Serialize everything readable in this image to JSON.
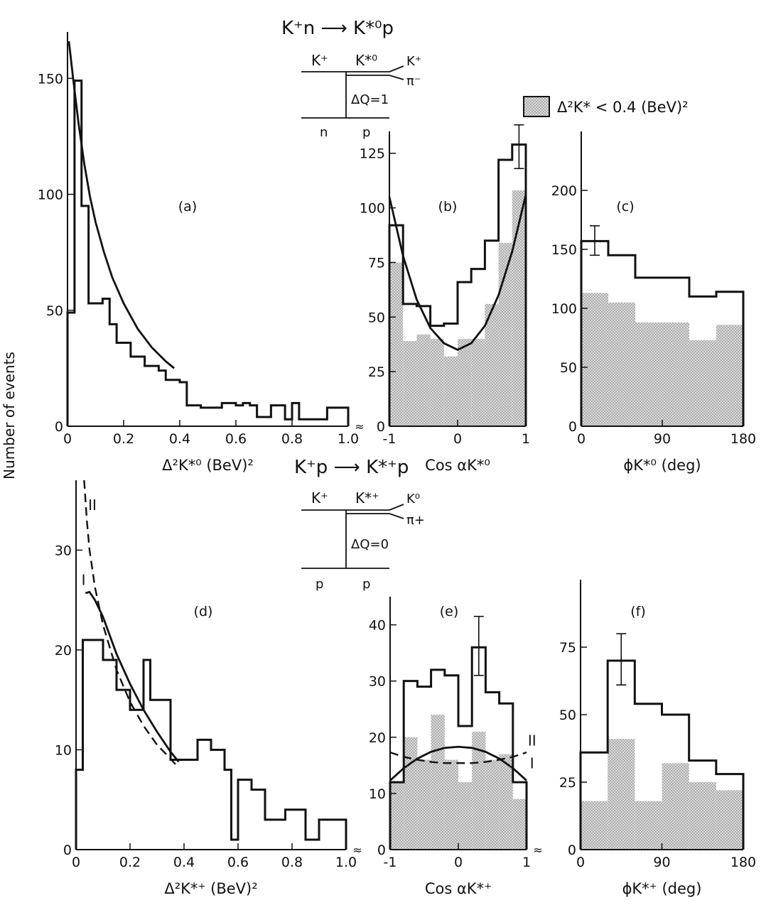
{
  "figure": {
    "ylabel": "Number of events",
    "legend": "Δ²K* < 0.4  (BeV)²"
  },
  "diagrams": [
    {
      "reaction": "K⁺n ⟶ K*⁰p",
      "top_left": "K⁺",
      "top_mid": "K*⁰",
      "out1": "K⁺",
      "out2": "π⁻",
      "exchange": "ΔQ=1",
      "bottom_left": "n",
      "bottom_right": "p"
    },
    {
      "reaction": "K⁺p ⟶ K*⁺p",
      "top_left": "K⁺",
      "top_mid": "K*⁺",
      "out1": "K⁰",
      "out2": "π+",
      "exchange": "ΔQ=0",
      "bottom_left": "p",
      "bottom_right": "p"
    }
  ],
  "chart_data": [
    {
      "id": "a",
      "panel_label": "(a)",
      "type": "bar",
      "xlabel": "Δ²K*⁰   (BeV)²",
      "xlim": [
        0,
        1.0
      ],
      "ylim": [
        0,
        170
      ],
      "xticks": [
        0,
        0.2,
        0.4,
        0.6,
        0.8,
        1.0
      ],
      "xtick_labels": [
        "0",
        "0.2",
        "0.4",
        "0.6",
        "0.8",
        "1.0"
      ],
      "yticks": [
        0,
        50,
        100,
        150
      ],
      "ytick_labels": [
        "0",
        "50",
        "100",
        "150"
      ],
      "axis_break": "≈",
      "bin_edges": [
        0,
        0.025,
        0.05,
        0.075,
        0.1,
        0.125,
        0.15,
        0.175,
        0.2,
        0.225,
        0.25,
        0.275,
        0.3,
        0.325,
        0.35,
        0.375,
        0.4,
        0.425,
        0.45,
        0.475,
        0.5,
        0.525,
        0.55,
        0.575,
        0.6,
        0.625,
        0.65,
        0.675,
        0.7,
        0.725,
        0.75,
        0.775,
        0.8,
        0.825,
        0.85,
        0.875,
        0.9,
        0.925,
        0.95,
        0.975,
        1.0
      ],
      "values": [
        49,
        149,
        95,
        53,
        53,
        55,
        44,
        36,
        36,
        30,
        30,
        26,
        26,
        24,
        20,
        20,
        19,
        9,
        9,
        8,
        8,
        8,
        10,
        10,
        9,
        10,
        9,
        4,
        4,
        9,
        9,
        3,
        10,
        3,
        3,
        3,
        3,
        8,
        8,
        8
      ],
      "curves": [
        {
          "name": "fit",
          "style": "solid",
          "x": [
            0.005,
            0.02,
            0.04,
            0.06,
            0.08,
            0.1,
            0.13,
            0.16,
            0.2,
            0.25,
            0.3,
            0.35,
            0.38
          ],
          "y": [
            166,
            150,
            130,
            113,
            99,
            88,
            75,
            64,
            53,
            42,
            34,
            28,
            25
          ]
        }
      ]
    },
    {
      "id": "b",
      "panel_label": "(b)",
      "type": "bar",
      "xlabel": "Cos αK*⁰",
      "xlim": [
        -1,
        1
      ],
      "ylim": [
        0,
        135
      ],
      "xticks": [
        -1,
        0,
        1
      ],
      "xtick_labels": [
        "-1",
        "0",
        "1"
      ],
      "yticks": [
        0,
        25,
        50,
        75,
        100,
        125
      ],
      "ytick_labels": [
        "0",
        "25",
        "50",
        "75",
        "100",
        "125"
      ],
      "bin_edges": [
        -1,
        -0.8,
        -0.6,
        -0.4,
        -0.2,
        0,
        0.2,
        0.4,
        0.6,
        0.8,
        1.0
      ],
      "values": [
        92,
        56,
        55,
        46,
        47,
        66,
        72,
        85,
        122,
        129
      ],
      "shaded": [
        75,
        39,
        42,
        40,
        32,
        40,
        40,
        56,
        84,
        108
      ],
      "error_bars": [
        {
          "x": 0.9,
          "y": 129,
          "low": 118,
          "high": 138
        }
      ],
      "curves": [
        {
          "name": "fit",
          "style": "solid",
          "x": [
            -1,
            -0.8,
            -0.6,
            -0.4,
            -0.2,
            0,
            0.2,
            0.4,
            0.6,
            0.8,
            1.0
          ],
          "y": [
            105,
            78,
            58,
            45,
            38,
            35,
            38,
            46,
            60,
            80,
            106
          ]
        }
      ]
    },
    {
      "id": "c",
      "panel_label": "(c)",
      "type": "bar",
      "xlabel": "ϕK*⁰  (deg)",
      "xlim": [
        0,
        180
      ],
      "ylim": [
        0,
        250
      ],
      "xticks": [
        0,
        90,
        180
      ],
      "xtick_labels": [
        "0",
        "90",
        "180"
      ],
      "yticks": [
        0,
        50,
        100,
        150,
        200
      ],
      "ytick_labels": [
        "0",
        "50",
        "100",
        "150",
        "200"
      ],
      "bin_edges": [
        0,
        30,
        60,
        120,
        150,
        180
      ],
      "values": [
        157,
        145,
        126,
        110,
        114
      ],
      "shaded": [
        113,
        105,
        88,
        73,
        86
      ],
      "error_bars": [
        {
          "x": 15,
          "y": 157,
          "low": 145,
          "high": 170
        }
      ]
    },
    {
      "id": "d",
      "panel_label": "(d)",
      "type": "bar",
      "xlabel": "Δ²K*⁺   (BeV)²",
      "xlim": [
        0,
        1.0
      ],
      "ylim": [
        0,
        37
      ],
      "xticks": [
        0,
        0.2,
        0.4,
        0.6,
        0.8,
        1.0
      ],
      "xtick_labels": [
        "0",
        "0.2",
        "0.4",
        "0.6",
        "0.8",
        "1.0"
      ],
      "yticks": [
        0,
        10,
        20,
        30
      ],
      "ytick_labels": [
        "0",
        "10",
        "20",
        "30"
      ],
      "axis_break": "≈",
      "bin_edges": [
        0,
        0.025,
        0.05,
        0.1,
        0.125,
        0.15,
        0.175,
        0.2,
        0.225,
        0.25,
        0.275,
        0.3,
        0.35,
        0.375,
        0.4,
        0.425,
        0.45,
        0.475,
        0.5,
        0.525,
        0.55,
        0.575,
        0.6,
        0.625,
        0.65,
        0.675,
        0.7,
        0.725,
        0.75,
        0.775,
        0.8,
        0.825,
        0.85,
        0.875,
        0.9,
        0.925,
        0.95,
        1.0
      ],
      "values": [
        8,
        21,
        21,
        19,
        19,
        16,
        16,
        14,
        14,
        19,
        15,
        15,
        9,
        9,
        9,
        9,
        11,
        11,
        10,
        10,
        8,
        1,
        7,
        7,
        6,
        6,
        3,
        3,
        3,
        4,
        4,
        4,
        1,
        1,
        3,
        3,
        3
      ],
      "curves": [
        {
          "name": "I",
          "style": "solid",
          "x": [
            0.035,
            0.05,
            0.07,
            0.1,
            0.15,
            0.2,
            0.25,
            0.3,
            0.35,
            0.38
          ],
          "y": [
            25.7,
            25.8,
            25.0,
            23.3,
            19.6,
            16.6,
            14.0,
            11.8,
            9.8,
            8.8
          ]
        },
        {
          "name": "II",
          "style": "dashed",
          "x": [
            0.03,
            0.04,
            0.05,
            0.07,
            0.1,
            0.15,
            0.2,
            0.25,
            0.3,
            0.35,
            0.38
          ],
          "y": [
            37,
            33,
            30,
            26.3,
            22.5,
            18.0,
            14.8,
            12.4,
            10.5,
            9.1,
            8.2
          ]
        }
      ],
      "curve_labels": [
        {
          "text": "II",
          "x": 0.045,
          "y": 34
        },
        {
          "text": "I",
          "x": 0.02,
          "y": 26.5
        }
      ]
    },
    {
      "id": "e",
      "panel_label": "(e)",
      "type": "bar",
      "xlabel": "Cos αK*⁺",
      "xlim": [
        -1,
        1
      ],
      "ylim": [
        0,
        45
      ],
      "xticks": [
        -1,
        0,
        1
      ],
      "xtick_labels": [
        "-1",
        "0",
        "1"
      ],
      "yticks": [
        0,
        10,
        20,
        30,
        40
      ],
      "ytick_labels": [
        "0",
        "10",
        "20",
        "30",
        "40"
      ],
      "axis_break": "≈",
      "bin_edges": [
        -1,
        -0.8,
        -0.6,
        -0.4,
        -0.2,
        0,
        0.2,
        0.4,
        0.6,
        0.8,
        1.0
      ],
      "values": [
        12,
        30,
        29,
        32,
        31,
        22,
        36,
        28,
        26,
        12
      ],
      "shaded": [
        12,
        20,
        16,
        24,
        16,
        12,
        21,
        16,
        17,
        9
      ],
      "error_bars": [
        {
          "x": 0.3,
          "y": 36,
          "low": 31,
          "high": 41.5
        }
      ],
      "curves": [
        {
          "name": "I",
          "style": "solid",
          "x": [
            -1,
            -0.8,
            -0.6,
            -0.4,
            -0.2,
            0,
            0.2,
            0.4,
            0.6,
            0.8,
            1.0
          ],
          "y": [
            12.3,
            14.5,
            16.2,
            17.4,
            18.1,
            18.3,
            18.1,
            17.4,
            16.2,
            14.5,
            12.3
          ]
        },
        {
          "name": "II",
          "style": "dashed",
          "x": [
            -1,
            -0.8,
            -0.6,
            -0.4,
            -0.2,
            0,
            0.2,
            0.4,
            0.6,
            0.8,
            1.0
          ],
          "y": [
            17.3,
            16.5,
            16.0,
            15.6,
            15.4,
            15.4,
            15.4,
            15.6,
            16.0,
            16.5,
            17.3
          ]
        }
      ],
      "curve_labels": [
        {
          "text": "II",
          "x": 1.02,
          "y": 18.5
        },
        {
          "text": "I",
          "x": 1.05,
          "y": 14.5
        }
      ]
    },
    {
      "id": "f",
      "panel_label": "(f)",
      "type": "bar",
      "xlabel": "ϕK*⁺  (deg)",
      "xlim": [
        0,
        180
      ],
      "ylim": [
        0,
        100
      ],
      "xticks": [
        0,
        90,
        180
      ],
      "xtick_labels": [
        "0",
        "90",
        "180"
      ],
      "yticks": [
        0,
        25,
        50,
        75
      ],
      "ytick_labels": [
        "0",
        "25",
        "50",
        "75"
      ],
      "bin_edges": [
        0,
        30,
        60,
        90,
        120,
        150,
        180
      ],
      "values": [
        36,
        70,
        54,
        50,
        33,
        28
      ],
      "shaded": [
        18,
        41,
        18,
        32,
        25,
        22
      ],
      "error_bars": [
        {
          "x": 45,
          "y": 70,
          "low": 61,
          "high": 80
        }
      ]
    }
  ]
}
